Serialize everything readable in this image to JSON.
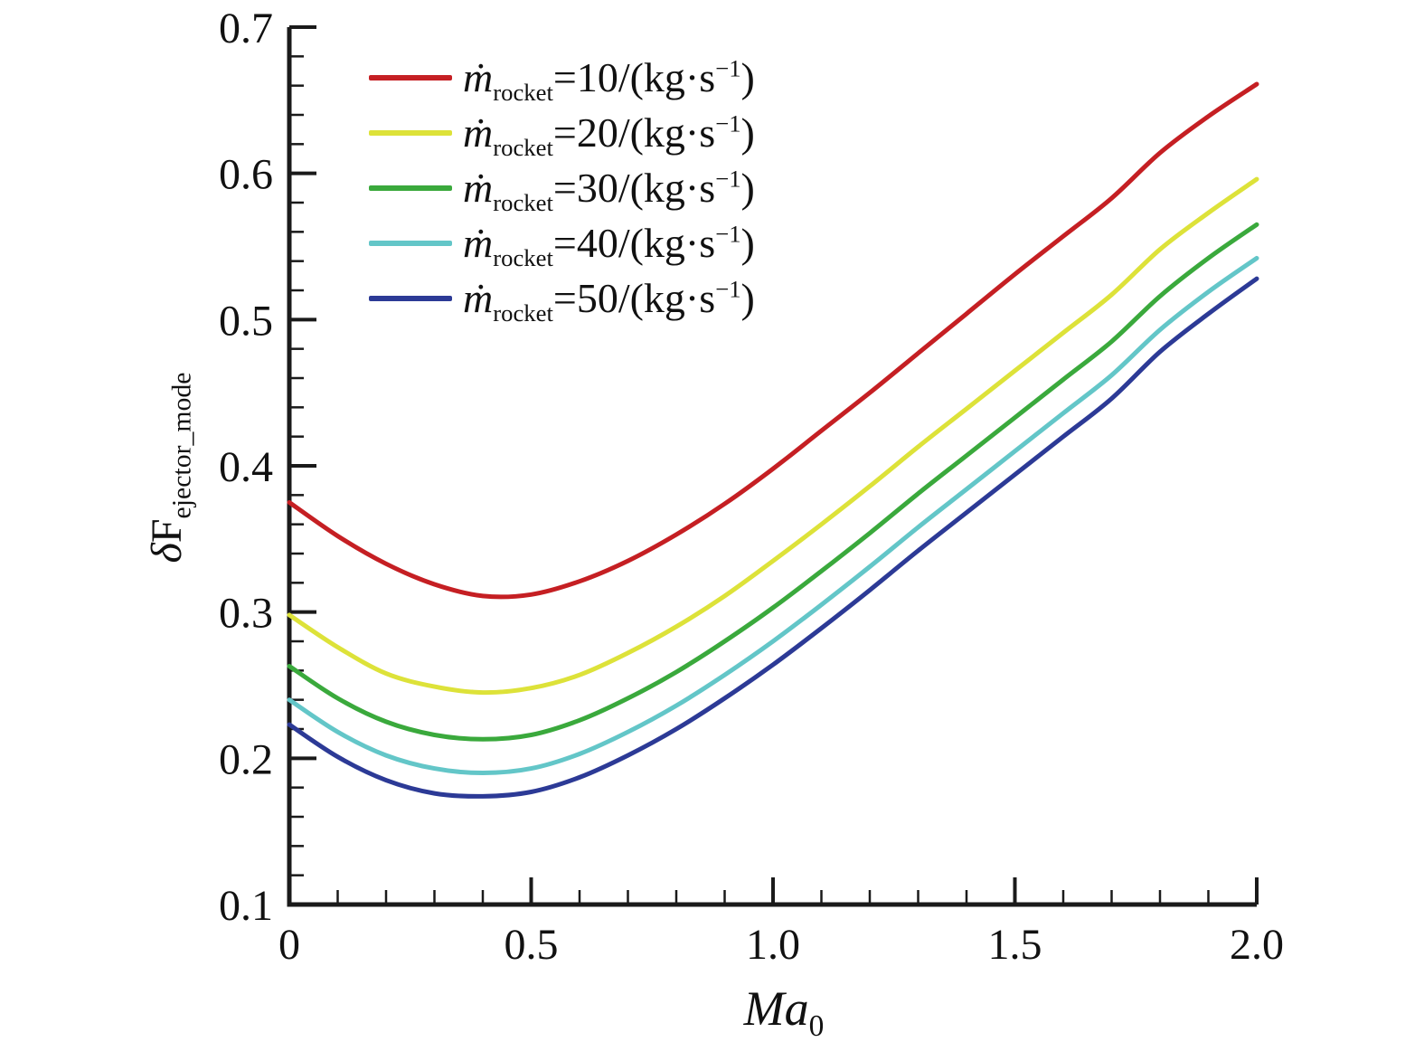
{
  "figure": {
    "background": "#ffffff",
    "axis_color": "#1a1a1a"
  },
  "chart_data": {
    "type": "line",
    "title": "",
    "xlabel": "Ma_0",
    "xlabel_main": "Ma",
    "xlabel_sub": "0",
    "ylabel": "δF_ejector_mode",
    "ylabel_delta": "δ",
    "ylabel_main": "F",
    "ylabel_sub": "ejector_mode",
    "xlim": [
      0,
      2
    ],
    "ylim": [
      0.1,
      0.7
    ],
    "grid": false,
    "legend_position": "upper-left-inside",
    "x_major_values": [
      0,
      0.5,
      1.0,
      1.5,
      2.0
    ],
    "x_major_labels": [
      "0",
      "0.5",
      "1.0",
      "1.5",
      "2.0"
    ],
    "x_minor_step": 0.1,
    "y_major_values": [
      0.1,
      0.2,
      0.3,
      0.4,
      0.5,
      0.6,
      0.7
    ],
    "y_major_labels": [
      "0.1",
      "0.2",
      "0.3",
      "0.4",
      "0.5",
      "0.6",
      "0.7"
    ],
    "y_minor_step": 0.02,
    "x": [
      0,
      0.1,
      0.2,
      0.3,
      0.4,
      0.5,
      0.6,
      0.7,
      0.8,
      0.9,
      1.0,
      1.1,
      1.2,
      1.3,
      1.4,
      1.5,
      1.6,
      1.7,
      1.8,
      1.9,
      2.0
    ],
    "series": [
      {
        "name": "mrocket_10",
        "label": "ṁ_rocket=10/(kg·s⁻¹)",
        "legend_parts": {
          "mdot": "ṁ",
          "sub": "rocket",
          "mid": "=10/(kg·s",
          "sup": "−1",
          "end": ")"
        },
        "color": "#c51f23",
        "values": [
          0.375,
          0.352,
          0.333,
          0.319,
          0.311,
          0.312,
          0.321,
          0.335,
          0.353,
          0.374,
          0.398,
          0.424,
          0.45,
          0.477,
          0.504,
          0.531,
          0.557,
          0.583,
          0.614,
          0.639,
          0.661
        ]
      },
      {
        "name": "mrocket_20",
        "label": "ṁ_rocket=20/(kg·s⁻¹)",
        "legend_parts": {
          "mdot": "ṁ",
          "sub": "rocket",
          "mid": "=20/(kg·s",
          "sup": "−1",
          "end": ")"
        },
        "color": "#dde239",
        "values": [
          0.298,
          0.276,
          0.258,
          0.249,
          0.245,
          0.248,
          0.257,
          0.272,
          0.29,
          0.311,
          0.335,
          0.36,
          0.386,
          0.413,
          0.439,
          0.465,
          0.491,
          0.517,
          0.548,
          0.573,
          0.596
        ]
      },
      {
        "name": "mrocket_30",
        "label": "ṁ_rocket=30/(kg·s⁻¹)",
        "legend_parts": {
          "mdot": "ṁ",
          "sub": "rocket",
          "mid": "=30/(kg·s",
          "sup": "−1",
          "end": ")"
        },
        "color": "#3aa93c",
        "values": [
          0.263,
          0.241,
          0.225,
          0.216,
          0.213,
          0.216,
          0.226,
          0.241,
          0.259,
          0.28,
          0.303,
          0.328,
          0.354,
          0.381,
          0.407,
          0.433,
          0.459,
          0.485,
          0.516,
          0.542,
          0.565
        ]
      },
      {
        "name": "mrocket_40",
        "label": "ṁ_rocket=40/(kg·s⁻¹)",
        "legend_parts": {
          "mdot": "ṁ",
          "sub": "rocket",
          "mid": "=40/(kg·s",
          "sup": "−1",
          "end": ")"
        },
        "color": "#63c6c8",
        "values": [
          0.24,
          0.218,
          0.202,
          0.193,
          0.19,
          0.193,
          0.203,
          0.218,
          0.236,
          0.257,
          0.28,
          0.305,
          0.331,
          0.358,
          0.384,
          0.41,
          0.436,
          0.462,
          0.493,
          0.519,
          0.542
        ]
      },
      {
        "name": "mrocket_50",
        "label": "ṁ_rocket=50/(kg·s⁻¹)",
        "legend_parts": {
          "mdot": "ṁ",
          "sub": "rocket",
          "mid": "=50/(kg·s",
          "sup": "−1",
          "end": ")"
        },
        "color": "#2c3a96",
        "values": [
          0.223,
          0.201,
          0.185,
          0.176,
          0.174,
          0.177,
          0.187,
          0.202,
          0.22,
          0.241,
          0.264,
          0.289,
          0.315,
          0.342,
          0.368,
          0.394,
          0.42,
          0.446,
          0.478,
          0.504,
          0.528
        ]
      }
    ]
  }
}
